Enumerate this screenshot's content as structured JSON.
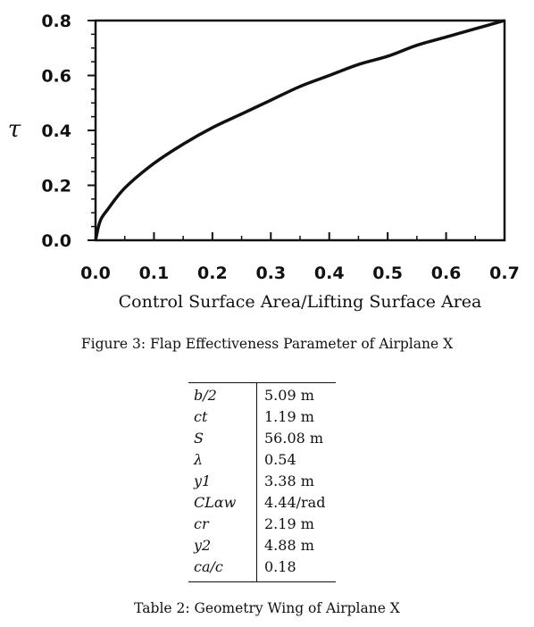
{
  "chart_data": {
    "type": "line",
    "ylabel": "τ",
    "xlabel": "Control Surface Area/Lifting Surface Area",
    "xlim": [
      0.0,
      0.7
    ],
    "ylim": [
      0.0,
      0.8
    ],
    "x_ticks": [
      "0.0",
      "0.1",
      "0.2",
      "0.3",
      "0.4",
      "0.5",
      "0.6",
      "0.7"
    ],
    "y_ticks": [
      "0.0",
      "0.2",
      "0.4",
      "0.6",
      "0.8"
    ],
    "grid": false,
    "series": [
      {
        "x": [
          0.0,
          0.005,
          0.01,
          0.02,
          0.05,
          0.1,
          0.15,
          0.2,
          0.25,
          0.3,
          0.35,
          0.4,
          0.45,
          0.5,
          0.55,
          0.6,
          0.65,
          0.7
        ],
        "y": [
          0.0,
          0.05,
          0.08,
          0.11,
          0.19,
          0.28,
          0.35,
          0.41,
          0.46,
          0.51,
          0.56,
          0.6,
          0.64,
          0.67,
          0.71,
          0.74,
          0.77,
          0.8
        ]
      }
    ]
  },
  "figure_caption": "Figure 3: Flap Effectiveness Parameter of Airplane X",
  "table": {
    "rows": [
      {
        "symbol": "b/2",
        "value": "5.09 m"
      },
      {
        "symbol": "ct",
        "value": "1.19 m"
      },
      {
        "symbol": "S",
        "value": "56.08 m"
      },
      {
        "symbol": "λ",
        "value": "0.54"
      },
      {
        "symbol": "y1",
        "value": "3.38 m"
      },
      {
        "symbol": "CLαw",
        "value": "4.44/rad"
      },
      {
        "symbol": "cr",
        "value": "2.19 m"
      },
      {
        "symbol": "y2",
        "value": "4.88 m"
      },
      {
        "symbol": "ca/c",
        "value": "0.18"
      }
    ],
    "caption": "Table 2: Geometry Wing of Airplane X"
  }
}
